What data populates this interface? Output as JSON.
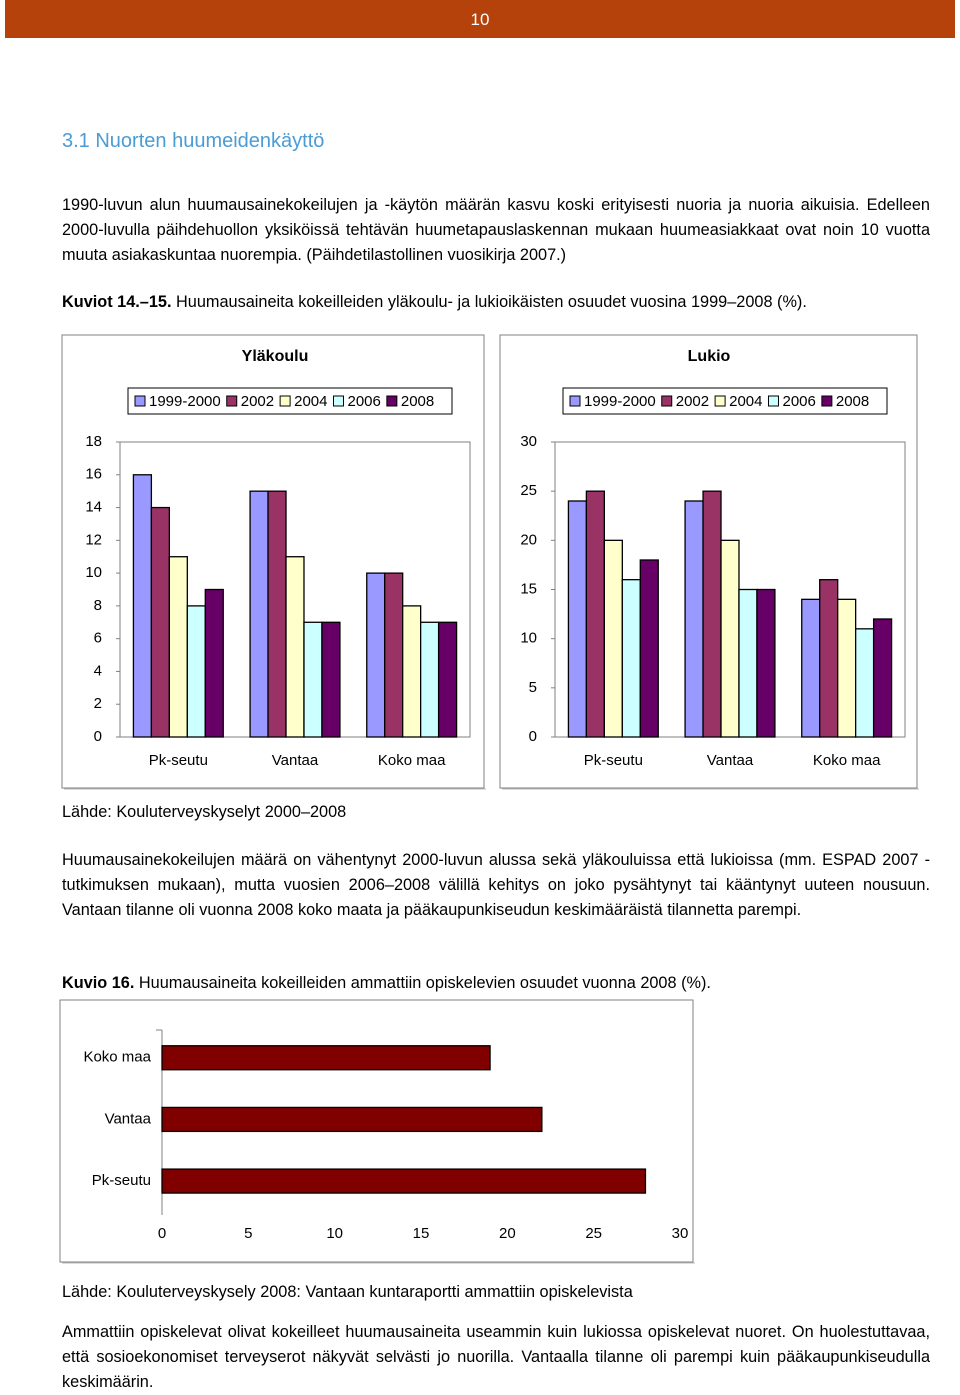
{
  "header": {
    "page_number": "10"
  },
  "section": {
    "heading": "3.1 Nuorten huumeidenkäyttö"
  },
  "paragraphs": [
    "1990-luvun alun huumausainekokeilujen ja -käytön määrän kasvu koski erityisesti nuoria ja nuoria aikuisia. Edelleen 2000-luvulla päihdehuollon yksiköissä tehtävän huumetapauslaskennan mukaan huumeasiakkaat ovat noin 10 vuotta muuta asiakaskuntaa nuorempia. (Päihdetilastollinen vuosikirja 2007.)",
    "Huumausainekokeilujen määrä on vähentynyt 2000-luvun alussa sekä yläkouluissa että lukioissa (mm. ESPAD 2007 -tutkimuksen mukaan), mutta vuosien 2006–2008 välillä kehitys on joko pysähtynyt tai kääntynyt uuteen nousuun. Vantaan tilanne oli vuonna 2008 koko maata ja pääkaupunkiseudun keskimääräistä tilannetta parem­pi.",
    "Ammattiin opiskelevat olivat kokeilleet huumausaineita useammin kuin lukiossa opiskelevat nuoret. On huoles­tuttavaa, että sosioekonomiset terveyserot näkyvät selvästi jo nuorilla. Vantaalla tilanne oli parempi kuin pää­kaupunkiseudulla keskimäärin."
  ],
  "captions": [
    {
      "label": "Kuviot 14.–15.",
      "text": "Huumausaineita kokeilleiden yläkoulu- ja lukioikäisten osuudet vuosina 1999–2008 (%)."
    },
    {
      "label": "Kuvio 16.",
      "text": "Huumausaineita kokeilleiden ammattiin opiskelevien osuudet vuonna 2008 (%)."
    }
  ],
  "sources": [
    "Lähde: Kouluterveyskyselyt 2000–2008",
    "Lähde: Kouluterveyskysely 2008: Vantaan kuntaraportti ammattiin opiskelevista"
  ],
  "chart_data": [
    {
      "type": "bar",
      "title": "Yläkoulu",
      "categories": [
        "Pk-seutu",
        "Vantaa",
        "Koko maa"
      ],
      "series": [
        {
          "name": "1999-2000",
          "color": "#9999ff",
          "values": [
            16,
            15,
            10
          ]
        },
        {
          "name": "2002",
          "color": "#993366",
          "values": [
            14,
            15,
            10
          ]
        },
        {
          "name": "2004",
          "color": "#ffffcc",
          "values": [
            11,
            11,
            8
          ]
        },
        {
          "name": "2006",
          "color": "#ccffff",
          "values": [
            8,
            7,
            7
          ]
        },
        {
          "name": "2008",
          "color": "#660066",
          "values": [
            9,
            7,
            7
          ]
        }
      ],
      "ylim": [
        0,
        18
      ],
      "yticks": [
        0,
        2,
        4,
        6,
        8,
        10,
        12,
        14,
        16,
        18
      ],
      "legend": "top"
    },
    {
      "type": "bar",
      "title": "Lukio",
      "categories": [
        "Pk-seutu",
        "Vantaa",
        "Koko maa"
      ],
      "series": [
        {
          "name": "1999-2000",
          "color": "#9999ff",
          "values": [
            24,
            24,
            14
          ]
        },
        {
          "name": "2002",
          "color": "#993366",
          "values": [
            25,
            25,
            16
          ]
        },
        {
          "name": "2004",
          "color": "#ffffcc",
          "values": [
            20,
            20,
            14
          ]
        },
        {
          "name": "2006",
          "color": "#ccffff",
          "values": [
            16,
            15,
            11
          ]
        },
        {
          "name": "2008",
          "color": "#660066",
          "values": [
            18,
            15,
            12
          ]
        }
      ],
      "ylim": [
        0,
        30
      ],
      "yticks": [
        0,
        5,
        10,
        15,
        20,
        25,
        30
      ],
      "legend": "top"
    },
    {
      "type": "barh",
      "categories": [
        "Koko maa",
        "Vantaa",
        "Pk-seutu"
      ],
      "values": [
        19,
        22,
        28
      ],
      "color": "#800000",
      "xlim": [
        0,
        30
      ],
      "xticks": [
        0,
        5,
        10,
        15,
        20,
        25,
        30
      ]
    }
  ]
}
